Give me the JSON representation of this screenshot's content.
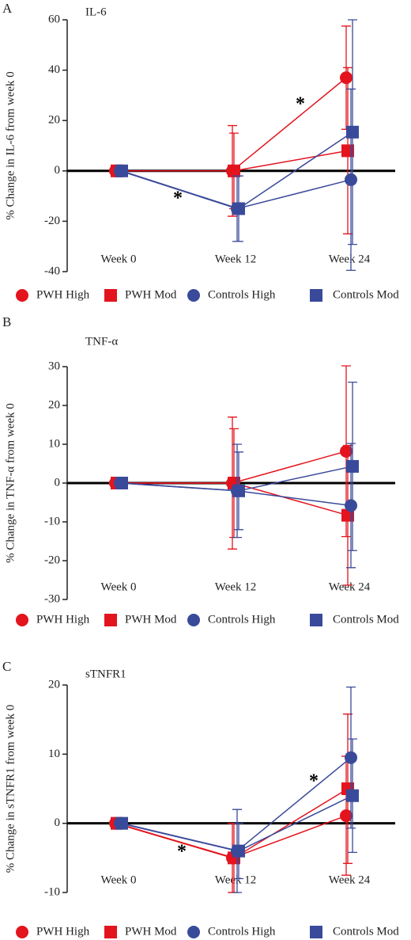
{
  "chart_data": [
    {
      "type": "line",
      "label": "A",
      "title": "IL-6",
      "ylabel": "% Change in IL-6 from week 0",
      "categories": [
        "Week 0",
        "Week 12",
        "Week 24"
      ],
      "series": [
        {
          "name": "PWH High",
          "color": "#e3141e",
          "marker": "circle",
          "values": [
            0,
            0,
            37
          ],
          "errors": [
            0,
            18,
            20.5
          ]
        },
        {
          "name": "PWH Mod",
          "color": "#e3141e",
          "marker": "square",
          "values": [
            0,
            0,
            8
          ],
          "errors": [
            0,
            15,
            33
          ]
        },
        {
          "name": "Controls High",
          "color": "#3a4a9a",
          "marker": "circle",
          "values": [
            0,
            -15,
            -3.5
          ],
          "errors": [
            0,
            13,
            36
          ]
        },
        {
          "name": "Controls Mod",
          "color": "#3a4a9a",
          "marker": "square",
          "values": [
            0,
            -15,
            15.4
          ],
          "errors": [
            0,
            13,
            44.6
          ]
        }
      ],
      "ylim": [
        -40,
        60
      ],
      "yticks": [
        -40,
        -20,
        0,
        20,
        40,
        60
      ],
      "annotations": [
        "*",
        "*"
      ]
    },
    {
      "type": "line",
      "label": "B",
      "title": "TNF-α",
      "ylabel": "% Change in TNF-α from week 0",
      "categories": [
        "Week 0",
        "Week 12",
        "Week 24"
      ],
      "series": [
        {
          "name": "PWH High",
          "color": "#e3141e",
          "marker": "circle",
          "values": [
            0,
            0,
            8.2
          ],
          "errors": [
            0,
            17,
            22
          ]
        },
        {
          "name": "PWH Mod",
          "color": "#e3141e",
          "marker": "square",
          "values": [
            0,
            0,
            -8.3
          ],
          "errors": [
            0,
            14,
            18
          ]
        },
        {
          "name": "Controls High",
          "color": "#3a4a9a",
          "marker": "circle",
          "values": [
            0,
            -2,
            -5.8
          ],
          "errors": [
            0,
            12,
            16
          ]
        },
        {
          "name": "Controls Mod",
          "color": "#3a4a9a",
          "marker": "square",
          "values": [
            0,
            -2,
            4.3
          ],
          "errors": [
            0,
            10,
            21.7
          ]
        }
      ],
      "ylim": [
        -30,
        30
      ],
      "yticks": [
        -30,
        -20,
        -10,
        0,
        10,
        20,
        30
      ],
      "annotations": []
    },
    {
      "type": "line",
      "label": "C",
      "title": "sTNFR1",
      "ylabel": "% Change in sTNFR1 from week 0",
      "categories": [
        "Week 0",
        "Week 12",
        "Week 24"
      ],
      "series": [
        {
          "name": "PWH High",
          "color": "#e3141e",
          "marker": "circle",
          "values": [
            0,
            -5,
            1.1
          ],
          "errors": [
            0,
            5,
            8.6
          ]
        },
        {
          "name": "PWH Mod",
          "color": "#e3141e",
          "marker": "square",
          "values": [
            0,
            -5,
            5
          ],
          "errors": [
            0,
            5,
            10.8
          ]
        },
        {
          "name": "Controls High",
          "color": "#3a4a9a",
          "marker": "circle",
          "values": [
            0,
            -4,
            9.5
          ],
          "errors": [
            0,
            6,
            10.2
          ]
        },
        {
          "name": "Controls Mod",
          "color": "#3a4a9a",
          "marker": "square",
          "values": [
            0,
            -4,
            4
          ],
          "errors": [
            0,
            4,
            8.2
          ]
        }
      ],
      "ylim": [
        -10,
        20
      ],
      "yticks": [
        -10,
        0,
        10,
        20
      ],
      "annotations": [
        "*",
        "*"
      ]
    }
  ]
}
